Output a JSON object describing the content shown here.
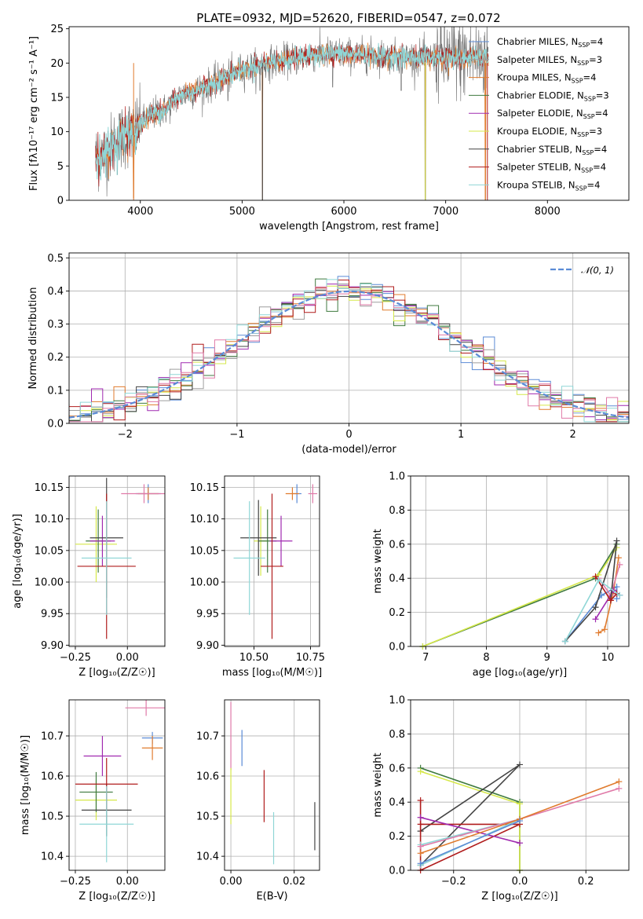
{
  "colors": {
    "chabrier_miles": "#5b8bd6",
    "salpeter_miles": "#9e9e9e",
    "kroupa_miles": "#e07b2e",
    "chabrier_elodie": "#3f7a3f",
    "salpeter_elodie": "#a02ab0",
    "kroupa_elodie": "#d6e84a",
    "chabrier_stelib": "#444444",
    "salpeter_stelib": "#b01c1c",
    "kroupa_stelib": "#8fd6d6",
    "extra_pink": "#e07aa8",
    "fit_line": "#5b8bd6"
  },
  "chart_data": [
    {
      "id": "spectrum",
      "type": "line",
      "title": "PLATE=0932, MJD=52620, FIBERID=0547, z=0.072",
      "xlabel": "wavelength [Angstrom, rest frame]",
      "ylabel": "Flux [fλ10⁻¹⁷ erg cm⁻² s⁻¹ A⁻¹]",
      "xlim": [
        3300,
        8800
      ],
      "ylim": [
        0,
        25.3
      ],
      "xticks": [
        "4000",
        "5000",
        "6000",
        "7000",
        "8000"
      ],
      "yticks": [
        "0",
        "5",
        "10",
        "15",
        "20",
        "25"
      ],
      "grid": false,
      "legend_position": "right",
      "legend": [
        {
          "label": "Chabrier MILES, N",
          "sub": "SSP",
          "tail": "=4",
          "color_key": "chabrier_miles"
        },
        {
          "label": "Salpeter MILES, N",
          "sub": "SSP",
          "tail": "=3",
          "color_key": "salpeter_miles"
        },
        {
          "label": "Kroupa MILES, N",
          "sub": "SSP",
          "tail": "=4",
          "color_key": "kroupa_miles"
        },
        {
          "label": "Chabrier ELODIE, N",
          "sub": "SSP",
          "tail": "=3",
          "color_key": "chabrier_elodie"
        },
        {
          "label": "Salpeter ELODIE, N",
          "sub": "SSP",
          "tail": "=4",
          "color_key": "salpeter_elodie"
        },
        {
          "label": "Kroupa ELODIE, N",
          "sub": "SSP",
          "tail": "=3",
          "color_key": "kroupa_elodie"
        },
        {
          "label": "Chabrier STELIB, N",
          "sub": "SSP",
          "tail": "=4",
          "color_key": "chabrier_stelib"
        },
        {
          "label": "Salpeter STELIB, N",
          "sub": "SSP",
          "tail": "=4",
          "color_key": "salpeter_stelib"
        },
        {
          "label": "Kroupa STELIB, N",
          "sub": "SSP",
          "tail": "=4",
          "color_key": "kroupa_stelib"
        }
      ],
      "continuum": [
        [
          3560,
          6.2
        ],
        [
          3650,
          6.8
        ],
        [
          3760,
          8.5
        ],
        [
          3870,
          9.8
        ],
        [
          3950,
          10.2
        ],
        [
          4050,
          11.8
        ],
        [
          4150,
          12.8
        ],
        [
          4250,
          13.2
        ],
        [
          4350,
          14.8
        ],
        [
          4450,
          15.6
        ],
        [
          4600,
          16.2
        ],
        [
          4750,
          17.3
        ],
        [
          4900,
          18.4
        ],
        [
          5000,
          19.0
        ],
        [
          5150,
          19.6
        ],
        [
          5300,
          20.2
        ],
        [
          5500,
          20.6
        ],
        [
          5700,
          21.2
        ],
        [
          5900,
          21.4
        ],
        [
          6100,
          21.2
        ],
        [
          6300,
          21.1
        ],
        [
          6500,
          21.0
        ],
        [
          6700,
          20.8
        ],
        [
          6900,
          20.8
        ],
        [
          7100,
          20.7
        ],
        [
          7300,
          20.8
        ],
        [
          7420,
          20.8
        ]
      ],
      "dips": [
        [
          3934,
          0.3
        ],
        [
          4861,
          14.5
        ],
        [
          5175,
          16.0
        ],
        [
          5200,
          0.0
        ],
        [
          5890,
          16.5
        ],
        [
          6563,
          16.0
        ],
        [
          6800,
          0.0
        ],
        [
          7390,
          0.0
        ]
      ]
    },
    {
      "id": "residuals",
      "type": "line",
      "xlabel": "(data-model)/error",
      "ylabel": "Normed distribution",
      "xlim": [
        -2.5,
        2.5
      ],
      "ylim": [
        0,
        0.515
      ],
      "xticks": [
        "−2",
        "−1",
        "0",
        "1",
        "2"
      ],
      "xtick_values": [
        -2,
        -1,
        0,
        1,
        2
      ],
      "yticks": [
        "0.0",
        "0.1",
        "0.2",
        "0.3",
        "0.4",
        "0.5"
      ],
      "ytick_values": [
        0,
        0.1,
        0.2,
        0.3,
        0.4,
        0.5
      ],
      "grid": true,
      "legend_position": "top-right",
      "legend": [
        {
          "label": "𝒩(0, 1)",
          "color_key": "fit_line"
        }
      ],
      "bin_width": 0.1
    },
    {
      "id": "age_vs_Z",
      "type": "scatter",
      "xlabel": "Z [log₁₀(Z/Z☉)]",
      "ylabel": "age  [log₁₀(age/yr)]",
      "xlim": [
        -0.28,
        0.18
      ],
      "ylim": [
        9.898,
        10.168
      ],
      "xticks": [
        "−0.25",
        "0.00"
      ],
      "xtick_values": [
        -0.25,
        0
      ],
      "yticks": [
        "9.90",
        "9.95",
        "10.00",
        "10.05",
        "10.10",
        "10.15"
      ],
      "ytick_values": [
        9.9,
        9.95,
        10,
        10.05,
        10.1,
        10.15
      ],
      "grid": true,
      "points": [
        {
          "x": 0.1,
          "y": 10.14,
          "xerr": 0.06,
          "yerr": 0.015,
          "c": "chabrier_miles"
        },
        {
          "x": 0.1,
          "y": 10.14,
          "xerr": 0.05,
          "yerr": 0.01,
          "c": "kroupa_miles"
        },
        {
          "x": 0.08,
          "y": 10.14,
          "xerr": 0.11,
          "yerr": 0.015,
          "c": "extra_pink"
        },
        {
          "x": -0.15,
          "y": 10.06,
          "xerr": 0.1,
          "yerr": 0.06,
          "c": "kroupa_elodie"
        },
        {
          "x": -0.14,
          "y": 10.065,
          "xerr": 0.06,
          "yerr": 0.05,
          "c": "chabrier_elodie"
        },
        {
          "x": -0.12,
          "y": 10.065,
          "xerr": 0.06,
          "yerr": 0.04,
          "c": "salpeter_elodie"
        },
        {
          "x": -0.1,
          "y": 10.07,
          "xerr": 0.08,
          "yerr": 0.095,
          "c": "chabrier_stelib"
        },
        {
          "x": -0.1,
          "y": 10.025,
          "xerr": 0.14,
          "yerr": 0.115,
          "c": "salpeter_stelib"
        },
        {
          "x": -0.1,
          "y": 10.038,
          "xerr": 0.12,
          "yerr": 0.09,
          "c": "kroupa_stelib"
        }
      ]
    },
    {
      "id": "age_vs_mass",
      "type": "scatter",
      "xlabel": "mass [log₁₀(M/M☉)]",
      "ylabel": "",
      "xlim": [
        10.37,
        10.79
      ],
      "ylim": [
        9.898,
        10.168
      ],
      "xticks": [
        "10.50",
        "10.75"
      ],
      "xtick_values": [
        10.5,
        10.75
      ],
      "yticks": [
        "9.90",
        "9.95",
        "10.00",
        "10.05",
        "10.10",
        "10.15"
      ],
      "ytick_values": [
        9.9,
        9.95,
        10,
        10.05,
        10.1,
        10.15
      ],
      "grid": true,
      "points": [
        {
          "x": 10.69,
          "y": 10.14,
          "xerr": 0.02,
          "yerr": 0.015,
          "c": "chabrier_miles"
        },
        {
          "x": 10.67,
          "y": 10.14,
          "xerr": 0.03,
          "yerr": 0.01,
          "c": "kroupa_miles"
        },
        {
          "x": 10.76,
          "y": 10.14,
          "xerr": 0.02,
          "yerr": 0.015,
          "c": "extra_pink"
        },
        {
          "x": 10.53,
          "y": 10.065,
          "xerr": 0.03,
          "yerr": 0.055,
          "c": "kroupa_elodie"
        },
        {
          "x": 10.56,
          "y": 10.065,
          "xerr": 0.04,
          "yerr": 0.05,
          "c": "chabrier_elodie"
        },
        {
          "x": 10.62,
          "y": 10.065,
          "xerr": 0.05,
          "yerr": 0.04,
          "c": "salpeter_elodie"
        },
        {
          "x": 10.52,
          "y": 10.07,
          "xerr": 0.08,
          "yerr": 0.06,
          "c": "chabrier_stelib"
        },
        {
          "x": 10.58,
          "y": 10.025,
          "xerr": 0.05,
          "yerr": 0.115,
          "c": "salpeter_stelib"
        },
        {
          "x": 10.48,
          "y": 10.038,
          "xerr": 0.07,
          "yerr": 0.09,
          "c": "kroupa_stelib"
        }
      ]
    },
    {
      "id": "massweight_vs_age",
      "type": "line",
      "xlabel": "age  [log₁₀(age/yr)]",
      "ylabel": "mass weight",
      "xlim": [
        6.75,
        10.35
      ],
      "ylim": [
        0,
        1
      ],
      "xticks": [
        "7",
        "8",
        "9",
        "10"
      ],
      "xtick_values": [
        7,
        8,
        9,
        10
      ],
      "yticks": [
        "0.0",
        "0.2",
        "0.4",
        "0.6",
        "0.8",
        "1.0"
      ],
      "ytick_values": [
        0,
        0.2,
        0.4,
        0.6,
        0.8,
        1
      ],
      "grid": true,
      "series": [
        {
          "c": "chabrier_miles",
          "pts": [
            [
              9.3,
              0.03
            ],
            [
              9.9,
              0.3
            ],
            [
              10.15,
              0.35
            ],
            [
              10.15,
              0.28
            ]
          ]
        },
        {
          "c": "kroupa_miles",
          "pts": [
            [
              9.85,
              0.08
            ],
            [
              9.95,
              0.1
            ],
            [
              10.1,
              0.33
            ],
            [
              10.18,
              0.52
            ]
          ]
        },
        {
          "c": "extra_pink",
          "pts": [
            [
              9.85,
              0.4
            ],
            [
              10.05,
              0.3
            ],
            [
              10.2,
              0.48
            ]
          ]
        },
        {
          "c": "chabrier_elodie",
          "pts": [
            [
              6.95,
              0.0
            ],
            [
              9.8,
              0.4
            ],
            [
              10.15,
              0.6
            ]
          ]
        },
        {
          "c": "kroupa_elodie",
          "pts": [
            [
              6.95,
              0.0
            ],
            [
              9.85,
              0.42
            ],
            [
              10.15,
              0.58
            ]
          ]
        },
        {
          "c": "salpeter_elodie",
          "pts": [
            [
              9.8,
              0.16
            ],
            [
              10.1,
              0.33
            ],
            [
              10.2,
              0.3
            ]
          ]
        },
        {
          "c": "chabrier_stelib",
          "pts": [
            [
              9.3,
              0.03
            ],
            [
              9.8,
              0.23
            ],
            [
              10.15,
              0.62
            ],
            [
              10.05,
              0.27
            ]
          ]
        },
        {
          "c": "salpeter_stelib",
          "pts": [
            [
              9.8,
              0.41
            ],
            [
              10.05,
              0.27
            ],
            [
              10.15,
              0.31
            ]
          ]
        },
        {
          "c": "kroupa_stelib",
          "pts": [
            [
              9.3,
              0.03
            ],
            [
              9.85,
              0.39
            ],
            [
              10.2,
              0.3
            ]
          ]
        }
      ]
    },
    {
      "id": "mass_vs_Z",
      "type": "scatter",
      "xlabel": "Z [log₁₀(Z/Z☉)]",
      "ylabel": "mass [log₁₀(M/M☉)]",
      "xlim": [
        -0.28,
        0.18
      ],
      "ylim": [
        10.365,
        10.79
      ],
      "xticks": [
        "−0.25",
        "0.00"
      ],
      "xtick_values": [
        -0.25,
        0
      ],
      "yticks": [
        "10.4",
        "10.5",
        "10.6",
        "10.7"
      ],
      "ytick_values": [
        10.4,
        10.5,
        10.6,
        10.7
      ],
      "grid": true,
      "points": [
        {
          "x": 0.12,
          "y": 10.695,
          "xerr": 0.05,
          "yerr": 0.015,
          "c": "chabrier_miles"
        },
        {
          "x": 0.12,
          "y": 10.67,
          "xerr": 0.05,
          "yerr": 0.03,
          "c": "kroupa_miles"
        },
        {
          "x": 0.09,
          "y": 10.77,
          "xerr": 0.1,
          "yerr": 0.02,
          "c": "extra_pink"
        },
        {
          "x": -0.12,
          "y": 10.65,
          "xerr": 0.09,
          "yerr": 0.05,
          "c": "salpeter_elodie"
        },
        {
          "x": -0.15,
          "y": 10.54,
          "xerr": 0.1,
          "yerr": 0.05,
          "c": "kroupa_elodie"
        },
        {
          "x": -0.15,
          "y": 10.56,
          "xerr": 0.08,
          "yerr": 0.05,
          "c": "chabrier_elodie"
        },
        {
          "x": -0.1,
          "y": 10.515,
          "xerr": 0.12,
          "yerr": 0.065,
          "c": "chabrier_stelib"
        },
        {
          "x": -0.1,
          "y": 10.58,
          "xerr": 0.15,
          "yerr": 0.065,
          "c": "salpeter_stelib"
        },
        {
          "x": -0.1,
          "y": 10.48,
          "xerr": 0.13,
          "yerr": 0.095,
          "c": "kroupa_stelib"
        }
      ]
    },
    {
      "id": "mass_vs_EBV",
      "type": "scatter",
      "xlabel": "E(B-V)",
      "ylabel": "",
      "xlim": [
        -0.002,
        0.028
      ],
      "ylim": [
        10.365,
        10.79
      ],
      "xticks": [
        "0.00",
        "0.02"
      ],
      "xtick_values": [
        0,
        0.02
      ],
      "yticks": [
        "10.4",
        "10.5",
        "10.6",
        "10.7"
      ],
      "ytick_values": [
        10.4,
        10.5,
        10.6,
        10.7
      ],
      "grid": true,
      "points": [
        {
          "x": 0.0,
          "y": 10.7,
          "xerr": 0,
          "yerr": 0.085,
          "c": "extra_pink"
        },
        {
          "x": 0.0,
          "y": 10.55,
          "xerr": 0,
          "yerr": 0.07,
          "c": "kroupa_elodie"
        },
        {
          "x": 0.0035,
          "y": 10.67,
          "xerr": 0,
          "yerr": 0.045,
          "c": "chabrier_miles"
        },
        {
          "x": 0.0105,
          "y": 10.55,
          "xerr": 0,
          "yerr": 0.065,
          "c": "salpeter_stelib"
        },
        {
          "x": 0.0135,
          "y": 10.445,
          "xerr": 0,
          "yerr": 0.065,
          "c": "kroupa_stelib"
        },
        {
          "x": 0.0265,
          "y": 10.475,
          "xerr": 0,
          "yerr": 0.06,
          "c": "chabrier_stelib"
        }
      ]
    },
    {
      "id": "massweight_vs_Z",
      "type": "line",
      "xlabel": "Z [log₁₀(Z/Z☉)]",
      "ylabel": "mass weight",
      "xlim": [
        -0.33,
        0.33
      ],
      "ylim": [
        0,
        1
      ],
      "xticks": [
        "−0.2",
        "0.0",
        "0.2"
      ],
      "xtick_values": [
        -0.2,
        0,
        0.2
      ],
      "yticks": [
        "0.0",
        "0.2",
        "0.4",
        "0.6",
        "0.8",
        "1.0"
      ],
      "ytick_values": [
        0,
        0.2,
        0.4,
        0.6,
        0.8,
        1
      ],
      "grid": true,
      "series": [
        {
          "c": "chabrier_elodie",
          "pts": [
            [
              -0.3,
              0.6
            ],
            [
              0.0,
              0.4
            ],
            [
              0.0,
              0.0
            ]
          ]
        },
        {
          "c": "kroupa_elodie",
          "pts": [
            [
              -0.3,
              0.58
            ],
            [
              0.0,
              0.39
            ],
            [
              0.0,
              0.0
            ]
          ]
        },
        {
          "c": "chabrier_stelib",
          "pts": [
            [
              -0.3,
              0.03
            ],
            [
              0.0,
              0.62
            ],
            [
              -0.3,
              0.23
            ]
          ]
        },
        {
          "c": "salpeter_stelib",
          "pts": [
            [
              -0.3,
              0.41
            ],
            [
              -0.3,
              0.0
            ],
            [
              0.0,
              0.27
            ],
            [
              -0.3,
              0.27
            ]
          ]
        },
        {
          "c": "salpeter_elodie",
          "pts": [
            [
              -0.3,
              0.31
            ],
            [
              0.0,
              0.16
            ]
          ]
        },
        {
          "c": "kroupa_stelib",
          "pts": [
            [
              -0.3,
              0.03
            ],
            [
              0.0,
              0.3
            ],
            [
              -0.3,
              0.15
            ]
          ]
        },
        {
          "c": "extra_pink",
          "pts": [
            [
              -0.3,
              0.14
            ],
            [
              0.0,
              0.3
            ],
            [
              0.3,
              0.48
            ]
          ]
        },
        {
          "c": "kroupa_miles",
          "pts": [
            [
              -0.3,
              0.1
            ],
            [
              0.0,
              0.3
            ],
            [
              0.3,
              0.52
            ]
          ]
        },
        {
          "c": "chabrier_miles",
          "pts": [
            [
              -0.3,
              0.04
            ],
            [
              0.0,
              0.29
            ]
          ]
        }
      ]
    }
  ]
}
